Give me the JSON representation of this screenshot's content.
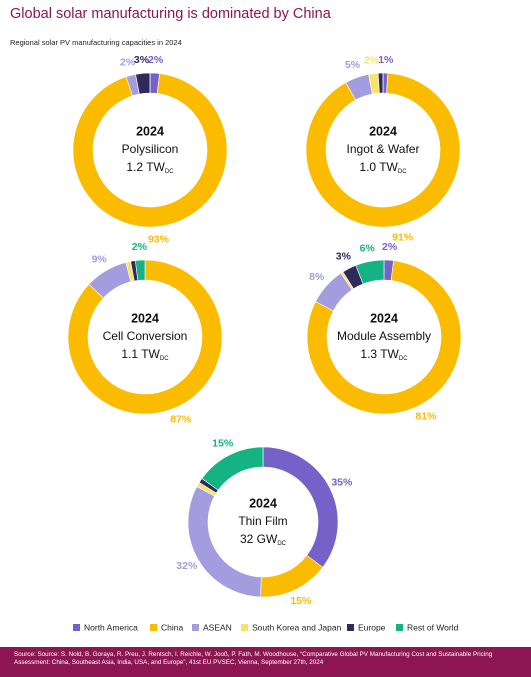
{
  "title": "Global solar manufacturing is dominated by China",
  "subtitle": "Regional solar PV manufacturing capacities in 2024",
  "source": "Source: Source: S. Nold, B. Goraya, R. Preu, J. Rentsch, I. Reichle, W. Jooß, P. Fath, M. Woodhouse, “Comparative Global PV Manufacturing Cost and Sustainable Pricing Assessment: China, Southeast Asia, India, USA, and Europe”, 41st EU PVSEC, Vienna, September 27th, 2024",
  "chart_data": [
    {
      "type": "pie",
      "year": "2024",
      "name": "Polysilicon",
      "capacity": "1.2 TW",
      "capacity_sub": "DC",
      "categories": [
        "North America",
        "China",
        "ASEAN",
        "South Korea and Japan",
        "Europe",
        "Rest of World"
      ],
      "colors": [
        "#7462c9",
        "#fbbc00",
        "#a39de0",
        "#f7e36b",
        "#2f2a5c",
        "#14b383"
      ],
      "values": [
        2,
        93,
        2,
        0,
        3,
        0
      ],
      "value_labels": [
        "2%",
        "93%",
        "2%",
        null,
        "3%",
        null
      ]
    },
    {
      "type": "pie",
      "year": "2024",
      "name": "Ingot & Wafer",
      "capacity": "1.0 TW",
      "capacity_sub": "DC",
      "categories": [
        "North America",
        "China",
        "ASEAN",
        "South Korea and Japan",
        "Europe",
        "Rest of World"
      ],
      "colors": [
        "#7462c9",
        "#fbbc00",
        "#a39de0",
        "#f7e36b",
        "#2f2a5c",
        "#14b383"
      ],
      "values": [
        1,
        91,
        5,
        2,
        1,
        0
      ],
      "value_labels": [
        "1%",
        "91%",
        "5%",
        "2%",
        null,
        null
      ]
    },
    {
      "type": "pie",
      "year": "2024",
      "name": "Cell Conversion",
      "capacity": "1.1 TW",
      "capacity_sub": "DC",
      "categories": [
        "North America",
        "China",
        "ASEAN",
        "South Korea and Japan",
        "Europe",
        "Rest of World"
      ],
      "colors": [
        "#7462c9",
        "#fbbc00",
        "#a39de0",
        "#f7e36b",
        "#2f2a5c",
        "#14b383"
      ],
      "values": [
        0,
        87,
        9,
        1,
        1,
        2
      ],
      "value_labels": [
        null,
        "87%",
        "9%",
        null,
        null,
        "2%"
      ]
    },
    {
      "type": "pie",
      "year": "2024",
      "name": "Module Assembly",
      "capacity": "1.3 TW",
      "capacity_sub": "DC",
      "categories": [
        "North America",
        "China",
        "ASEAN",
        "South Korea and Japan",
        "Europe",
        "Rest of World"
      ],
      "colors": [
        "#7462c9",
        "#fbbc00",
        "#a39de0",
        "#f7e36b",
        "#2f2a5c",
        "#14b383"
      ],
      "values": [
        2,
        81,
        8,
        0.5,
        3,
        6
      ],
      "value_labels": [
        "2%",
        "81%",
        "8%",
        null,
        "3%",
        "6%"
      ]
    },
    {
      "type": "pie",
      "year": "2024",
      "name": "Thin Film",
      "capacity": "32 GW",
      "capacity_sub": "DC",
      "categories": [
        "North America",
        "China",
        "ASEAN",
        "South Korea and Japan",
        "Europe",
        "Rest of World"
      ],
      "colors": [
        "#7462c9",
        "#fbbc00",
        "#a39de0",
        "#f7e36b",
        "#2f2a5c",
        "#14b383"
      ],
      "values": [
        35,
        15,
        32,
        1,
        1,
        15
      ],
      "value_labels": [
        "35%",
        "15%",
        "32%",
        null,
        null,
        "15%"
      ]
    }
  ]
}
